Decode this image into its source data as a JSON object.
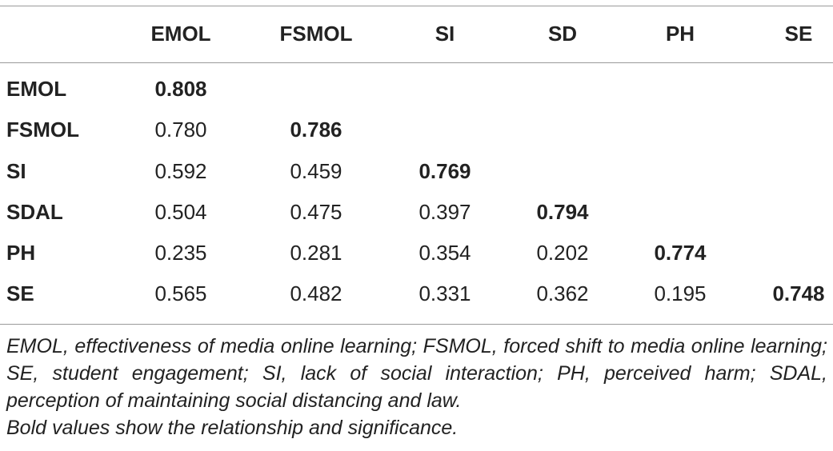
{
  "table": {
    "columns": [
      "EMOL",
      "FSMOL",
      "SI",
      "SD",
      "PH",
      "SE"
    ],
    "rows": [
      {
        "label": "EMOL",
        "values": [
          "0.808",
          "",
          "",
          "",
          "",
          ""
        ],
        "bold_index": 0
      },
      {
        "label": "FSMOL",
        "values": [
          "0.780",
          "0.786",
          "",
          "",
          "",
          ""
        ],
        "bold_index": 1
      },
      {
        "label": "SI",
        "values": [
          "0.592",
          "0.459",
          "0.769",
          "",
          "",
          ""
        ],
        "bold_index": 2
      },
      {
        "label": "SDAL",
        "values": [
          "0.504",
          "0.475",
          "0.397",
          "0.794",
          "",
          ""
        ],
        "bold_index": 3
      },
      {
        "label": "PH",
        "values": [
          "0.235",
          "0.281",
          "0.354",
          "0.202",
          "0.774",
          ""
        ],
        "bold_index": 4
      },
      {
        "label": "SE",
        "values": [
          "0.565",
          "0.482",
          "0.331",
          "0.362",
          "0.195",
          "0.748"
        ],
        "bold_index": 5
      }
    ]
  },
  "footnote": {
    "abbreviations": "EMOL, effectiveness of media online learning; FSMOL, forced shift to media online learning; SE, student engagement; SI, lack of social interaction; PH, perceived harm; SDAL, perception of maintaining social distancing and law.",
    "bold_note": "Bold values show the relationship and significance."
  }
}
